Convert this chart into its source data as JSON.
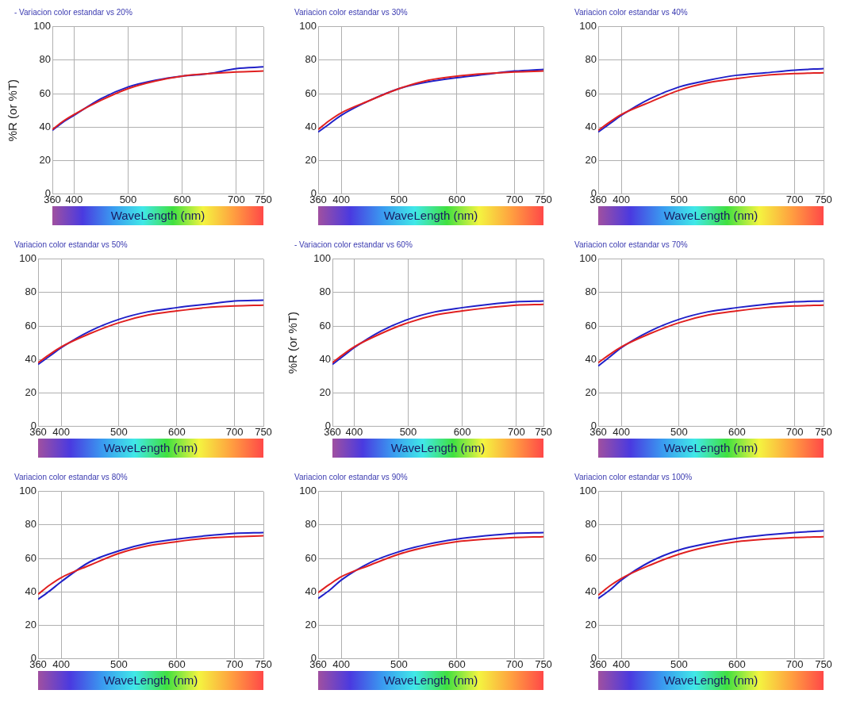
{
  "chart_data": [
    {
      "type": "line",
      "title": "- Variacion color estandar vs 20%",
      "xlabel": "WaveLength (nm)",
      "ylabel": "%R (or %T)",
      "x": [
        360,
        380,
        400,
        450,
        500,
        550,
        600,
        650,
        700,
        750
      ],
      "xlim": [
        360,
        750
      ],
      "xticks": [
        360,
        400,
        500,
        600,
        700,
        750
      ],
      "ylim": [
        0,
        100
      ],
      "yticks": [
        0,
        20,
        40,
        60,
        80,
        100
      ],
      "grid": true,
      "marker": "none",
      "series": [
        {
          "color": "#e02020",
          "values": [
            38.5,
            43.5,
            47.5,
            56,
            63,
            67.5,
            70.5,
            72,
            73,
            73.5
          ]
        },
        {
          "color": "#2020c8",
          "values": [
            38,
            43,
            47,
            57,
            64,
            68,
            70.5,
            72,
            75,
            76
          ]
        }
      ]
    },
    {
      "type": "line",
      "title": "Variacion color estandar vs 30%",
      "xlabel": "WaveLength (nm)",
      "x": [
        360,
        380,
        400,
        450,
        500,
        550,
        600,
        650,
        700,
        750
      ],
      "xlim": [
        360,
        750
      ],
      "xticks": [
        360,
        400,
        500,
        600,
        700,
        750
      ],
      "ylim": [
        0,
        100
      ],
      "yticks": [
        0,
        20,
        40,
        60,
        80,
        100
      ],
      "grid": true,
      "marker": "none",
      "series": [
        {
          "color": "#e02020",
          "values": [
            38.5,
            44,
            48.5,
            56,
            63,
            68,
            70.5,
            72,
            73,
            73.5
          ]
        },
        {
          "color": "#2020c8",
          "values": [
            37,
            42,
            47,
            56,
            63,
            67,
            69.5,
            71.5,
            73.5,
            74.5
          ]
        }
      ]
    },
    {
      "type": "line",
      "title": "Variacion color estandar vs 40%",
      "xlabel": "WaveLength (nm)",
      "x": [
        360,
        380,
        400,
        450,
        500,
        550,
        600,
        650,
        700,
        750
      ],
      "xlim": [
        360,
        750
      ],
      "xticks": [
        360,
        400,
        500,
        600,
        700,
        750
      ],
      "ylim": [
        0,
        100
      ],
      "yticks": [
        0,
        20,
        40,
        60,
        80,
        100
      ],
      "grid": true,
      "marker": "none",
      "series": [
        {
          "color": "#e02020",
          "values": [
            38,
            43,
            47.5,
            55,
            62,
            66.5,
            69,
            71,
            72,
            72.5
          ]
        },
        {
          "color": "#2020c8",
          "values": [
            37,
            42,
            47,
            57,
            64,
            68,
            71,
            72.5,
            74,
            75
          ]
        }
      ]
    },
    {
      "type": "line",
      "title": "Variacion color estandar vs 50%",
      "xlabel": "WaveLength (nm)",
      "x": [
        360,
        380,
        400,
        450,
        500,
        550,
        600,
        650,
        700,
        750
      ],
      "xlim": [
        360,
        750
      ],
      "xticks": [
        360,
        400,
        500,
        600,
        700,
        750
      ],
      "ylim": [
        0,
        100
      ],
      "yticks": [
        0,
        20,
        40,
        60,
        80,
        100
      ],
      "grid": true,
      "marker": "none",
      "series": [
        {
          "color": "#e02020",
          "values": [
            38,
            43,
            47.5,
            55.5,
            62,
            66.5,
            69,
            71,
            72,
            72.5
          ]
        },
        {
          "color": "#2020c8",
          "values": [
            37,
            42,
            47,
            57,
            64,
            68.5,
            71,
            73,
            75,
            75.5
          ]
        }
      ]
    },
    {
      "type": "line",
      "title": "- Variacion color estandar vs 60%",
      "xlabel": "WaveLength (nm)",
      "ylabel": "%R (or %T)",
      "x": [
        360,
        380,
        400,
        450,
        500,
        550,
        600,
        650,
        700,
        750
      ],
      "xlim": [
        360,
        750
      ],
      "xticks": [
        360,
        400,
        500,
        600,
        700,
        750
      ],
      "ylim": [
        0,
        100
      ],
      "yticks": [
        0,
        20,
        40,
        60,
        80,
        100
      ],
      "grid": true,
      "marker": "none",
      "series": [
        {
          "color": "#e02020",
          "values": [
            38,
            43,
            47.5,
            55.5,
            62,
            66.5,
            69,
            71,
            72.5,
            73
          ]
        },
        {
          "color": "#2020c8",
          "values": [
            37,
            42,
            47,
            57,
            64,
            68.5,
            71,
            73,
            74.5,
            75
          ]
        }
      ]
    },
    {
      "type": "line",
      "title": "Variacion color estandar vs 70%",
      "xlabel": "WaveLength (nm)",
      "x": [
        360,
        380,
        400,
        450,
        500,
        550,
        600,
        650,
        700,
        750
      ],
      "xlim": [
        360,
        750
      ],
      "xticks": [
        360,
        400,
        500,
        600,
        700,
        750
      ],
      "ylim": [
        0,
        100
      ],
      "yticks": [
        0,
        20,
        40,
        60,
        80,
        100
      ],
      "grid": true,
      "marker": "none",
      "series": [
        {
          "color": "#e02020",
          "values": [
            38,
            43,
            47.5,
            55.5,
            62,
            66.5,
            69,
            71,
            72,
            72.5
          ]
        },
        {
          "color": "#2020c8",
          "values": [
            36,
            41.5,
            47,
            57,
            64,
            68.5,
            71,
            73,
            74.5,
            75
          ]
        }
      ]
    },
    {
      "type": "line",
      "title": "Variacion color estandar vs 80%",
      "xlabel": "WaveLength (nm)",
      "x": [
        360,
        380,
        400,
        450,
        500,
        550,
        600,
        650,
        700,
        750
      ],
      "xlim": [
        360,
        750
      ],
      "xticks": [
        360,
        400,
        500,
        600,
        700,
        750
      ],
      "ylim": [
        0,
        100
      ],
      "yticks": [
        0,
        20,
        40,
        60,
        80,
        100
      ],
      "grid": true,
      "marker": "none",
      "series": [
        {
          "color": "#e02020",
          "values": [
            38.5,
            44,
            48.5,
            56,
            63,
            67.5,
            70,
            72,
            73,
            73.5
          ]
        },
        {
          "color": "#2020c8",
          "values": [
            35.5,
            40.5,
            46,
            58,
            64.5,
            69,
            71.5,
            73.5,
            75,
            75.5
          ]
        }
      ]
    },
    {
      "type": "line",
      "title": "Variacion color estandar vs 90%",
      "xlabel": "WaveLength (nm)",
      "x": [
        360,
        380,
        400,
        450,
        500,
        550,
        600,
        650,
        700,
        750
      ],
      "xlim": [
        360,
        750
      ],
      "xticks": [
        360,
        400,
        500,
        600,
        700,
        750
      ],
      "ylim": [
        0,
        100
      ],
      "yticks": [
        0,
        20,
        40,
        60,
        80,
        100
      ],
      "grid": true,
      "marker": "none",
      "series": [
        {
          "color": "#e02020",
          "values": [
            39.5,
            44.5,
            49,
            56,
            62.5,
            67,
            70,
            71.5,
            72.5,
            73
          ]
        },
        {
          "color": "#2020c8",
          "values": [
            36,
            41,
            47,
            57.5,
            64,
            68.5,
            71.5,
            73.5,
            75,
            75.5
          ]
        }
      ]
    },
    {
      "type": "line",
      "title": "Variacion color estandar vs 100%",
      "xlabel": "WaveLength (nm)",
      "x": [
        360,
        380,
        400,
        450,
        500,
        550,
        600,
        650,
        700,
        750
      ],
      "xlim": [
        360,
        750
      ],
      "xticks": [
        360,
        400,
        500,
        600,
        700,
        750
      ],
      "ylim": [
        0,
        100
      ],
      "yticks": [
        0,
        20,
        40,
        60,
        80,
        100
      ],
      "grid": true,
      "marker": "none",
      "series": [
        {
          "color": "#e02020",
          "values": [
            38,
            43.5,
            48,
            56,
            62.5,
            67,
            70,
            71.5,
            72.5,
            73
          ]
        },
        {
          "color": "#2020c8",
          "values": [
            36,
            41,
            47,
            58,
            65,
            69,
            72,
            74,
            75.5,
            76.5
          ]
        }
      ]
    }
  ]
}
